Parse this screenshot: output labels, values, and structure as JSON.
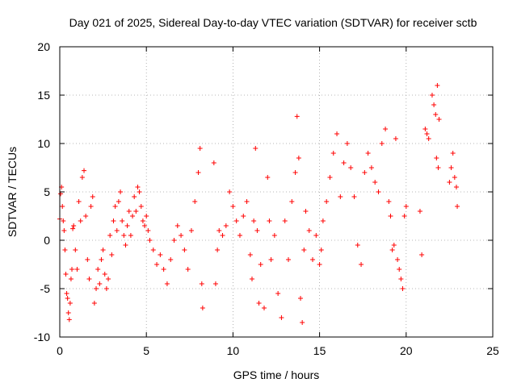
{
  "chart_data": {
    "type": "scatter",
    "title": "Day 021 of 2025, Sidereal Day-to-day VTEC variation (SDTVAR) for receiver sctb",
    "xlabel": "GPS time / hours",
    "ylabel": "SDTVAR / TECUs",
    "xlim": [
      0,
      25
    ],
    "ylim": [
      -10,
      20
    ],
    "xticks": [
      0,
      5,
      10,
      15,
      20,
      25
    ],
    "yticks": [
      -10,
      -5,
      0,
      5,
      10,
      15,
      20
    ],
    "grid": true,
    "marker": "+",
    "color": "#ff0000",
    "series": [
      {
        "name": "SDTVAR",
        "points": [
          [
            0.0,
            2.2
          ],
          [
            0.05,
            4.8
          ],
          [
            0.1,
            5.5
          ],
          [
            0.15,
            3.5
          ],
          [
            0.2,
            2.0
          ],
          [
            0.25,
            1.0
          ],
          [
            0.3,
            -1.0
          ],
          [
            0.35,
            -3.5
          ],
          [
            0.4,
            -5.5
          ],
          [
            0.45,
            -6.0
          ],
          [
            0.5,
            -7.5
          ],
          [
            0.55,
            -8.2
          ],
          [
            0.6,
            -6.5
          ],
          [
            0.65,
            -4.0
          ],
          [
            0.7,
            -3.0
          ],
          [
            0.75,
            1.2
          ],
          [
            0.8,
            1.5
          ],
          [
            0.9,
            -1.0
          ],
          [
            1.0,
            -3.0
          ],
          [
            1.1,
            4.0
          ],
          [
            1.2,
            2.0
          ],
          [
            1.3,
            6.5
          ],
          [
            1.4,
            7.2
          ],
          [
            1.5,
            2.5
          ],
          [
            1.6,
            -2.0
          ],
          [
            1.7,
            -4.0
          ],
          [
            1.8,
            3.5
          ],
          [
            1.9,
            4.5
          ],
          [
            2.0,
            -6.5
          ],
          [
            2.1,
            -5.0
          ],
          [
            2.2,
            -3.0
          ],
          [
            2.3,
            -4.5
          ],
          [
            2.4,
            -2.0
          ],
          [
            2.5,
            -1.0
          ],
          [
            2.6,
            -3.5
          ],
          [
            2.7,
            -5.0
          ],
          [
            2.8,
            -4.0
          ],
          [
            2.9,
            0.5
          ],
          [
            3.0,
            -1.5
          ],
          [
            3.1,
            2.0
          ],
          [
            3.2,
            3.5
          ],
          [
            3.3,
            1.0
          ],
          [
            3.4,
            4.0
          ],
          [
            3.5,
            5.0
          ],
          [
            3.6,
            2.0
          ],
          [
            3.7,
            0.5
          ],
          [
            3.8,
            -0.5
          ],
          [
            3.9,
            1.5
          ],
          [
            4.0,
            3.0
          ],
          [
            4.1,
            0.5
          ],
          [
            4.2,
            2.5
          ],
          [
            4.3,
            4.5
          ],
          [
            4.4,
            3.0
          ],
          [
            4.5,
            5.5
          ],
          [
            4.6,
            5.0
          ],
          [
            4.7,
            3.5
          ],
          [
            4.8,
            2.0
          ],
          [
            4.9,
            1.5
          ],
          [
            5.0,
            2.5
          ],
          [
            5.1,
            1.0
          ],
          [
            5.2,
            0.0
          ],
          [
            5.4,
            -1.0
          ],
          [
            5.6,
            -2.5
          ],
          [
            5.8,
            -1.5
          ],
          [
            6.0,
            -3.0
          ],
          [
            6.2,
            -4.5
          ],
          [
            6.4,
            -2.0
          ],
          [
            6.6,
            0.0
          ],
          [
            6.8,
            1.5
          ],
          [
            7.0,
            0.5
          ],
          [
            7.2,
            -1.0
          ],
          [
            7.4,
            -3.0
          ],
          [
            7.6,
            1.0
          ],
          [
            7.8,
            4.0
          ],
          [
            8.0,
            7.0
          ],
          [
            8.1,
            9.5
          ],
          [
            8.2,
            -4.5
          ],
          [
            8.25,
            -7.0
          ],
          [
            8.9,
            8.0
          ],
          [
            9.0,
            -4.5
          ],
          [
            9.1,
            -1.0
          ],
          [
            9.2,
            1.0
          ],
          [
            9.4,
            0.5
          ],
          [
            9.6,
            1.5
          ],
          [
            9.8,
            5.0
          ],
          [
            10.0,
            3.5
          ],
          [
            10.2,
            2.0
          ],
          [
            10.4,
            0.5
          ],
          [
            10.6,
            2.5
          ],
          [
            10.8,
            4.0
          ],
          [
            11.0,
            -1.5
          ],
          [
            11.1,
            -4.0
          ],
          [
            11.2,
            2.0
          ],
          [
            11.3,
            9.5
          ],
          [
            11.4,
            1.0
          ],
          [
            11.5,
            -6.5
          ],
          [
            11.6,
            -2.5
          ],
          [
            11.8,
            -7.0
          ],
          [
            12.0,
            6.5
          ],
          [
            12.1,
            2.0
          ],
          [
            12.2,
            -2.0
          ],
          [
            12.4,
            0.5
          ],
          [
            12.6,
            -5.5
          ],
          [
            12.8,
            -8.0
          ],
          [
            13.0,
            2.0
          ],
          [
            13.2,
            -2.0
          ],
          [
            13.4,
            4.0
          ],
          [
            13.6,
            7.0
          ],
          [
            13.7,
            12.8
          ],
          [
            13.8,
            8.5
          ],
          [
            13.9,
            -6.0
          ],
          [
            14.0,
            -8.5
          ],
          [
            14.1,
            -1.0
          ],
          [
            14.2,
            3.0
          ],
          [
            14.4,
            1.0
          ],
          [
            14.6,
            -2.0
          ],
          [
            14.8,
            0.5
          ],
          [
            15.0,
            -2.5
          ],
          [
            15.1,
            -1.0
          ],
          [
            15.2,
            2.0
          ],
          [
            15.4,
            4.0
          ],
          [
            15.6,
            6.5
          ],
          [
            15.8,
            9.0
          ],
          [
            16.0,
            11.0
          ],
          [
            16.2,
            4.5
          ],
          [
            16.4,
            8.0
          ],
          [
            16.6,
            10.0
          ],
          [
            16.8,
            7.5
          ],
          [
            17.0,
            4.5
          ],
          [
            17.2,
            -0.5
          ],
          [
            17.4,
            -2.5
          ],
          [
            17.6,
            7.0
          ],
          [
            17.8,
            9.0
          ],
          [
            18.0,
            7.5
          ],
          [
            18.2,
            6.0
          ],
          [
            18.4,
            5.0
          ],
          [
            18.6,
            10.0
          ],
          [
            18.8,
            11.5
          ],
          [
            19.0,
            4.0
          ],
          [
            19.1,
            2.5
          ],
          [
            19.2,
            -1.0
          ],
          [
            19.3,
            -0.5
          ],
          [
            19.4,
            10.5
          ],
          [
            19.5,
            -2.0
          ],
          [
            19.6,
            -3.0
          ],
          [
            19.7,
            -4.0
          ],
          [
            19.8,
            -5.0
          ],
          [
            19.9,
            2.5
          ],
          [
            20.0,
            3.5
          ],
          [
            20.8,
            3.0
          ],
          [
            20.9,
            -1.5
          ],
          [
            21.1,
            11.5
          ],
          [
            21.2,
            11.0
          ],
          [
            21.3,
            10.5
          ],
          [
            21.5,
            15.0
          ],
          [
            21.6,
            14.0
          ],
          [
            21.7,
            13.0
          ],
          [
            21.75,
            8.5
          ],
          [
            21.8,
            16.0
          ],
          [
            21.85,
            7.5
          ],
          [
            21.9,
            12.5
          ],
          [
            22.5,
            6.0
          ],
          [
            22.6,
            7.5
          ],
          [
            22.7,
            9.0
          ],
          [
            22.8,
            6.5
          ],
          [
            22.9,
            5.5
          ],
          [
            22.95,
            3.5
          ]
        ]
      }
    ]
  }
}
